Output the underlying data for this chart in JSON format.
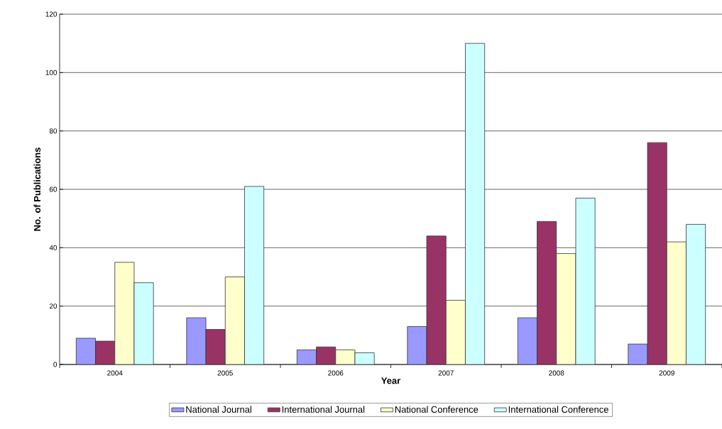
{
  "chart_data": {
    "type": "bar",
    "xlabel": "Year",
    "ylabel": "No. of Publications",
    "categories": [
      "2004",
      "2005",
      "2006",
      "2007",
      "2008",
      "2009"
    ],
    "series": [
      {
        "name": "National Journal",
        "color": "#9999ff",
        "values": [
          9,
          16,
          5,
          13,
          16,
          7
        ]
      },
      {
        "name": "International Journal",
        "color": "#993366",
        "values": [
          8,
          12,
          6,
          44,
          49,
          76
        ]
      },
      {
        "name": "National Conference",
        "color": "#ffffcc",
        "values": [
          35,
          30,
          5,
          22,
          38,
          42
        ]
      },
      {
        "name": "International Conference",
        "color": "#ccffff",
        "values": [
          28,
          61,
          4,
          110,
          57,
          48
        ]
      }
    ],
    "ylim": [
      0,
      120
    ],
    "yticks": [
      0,
      20,
      40,
      60,
      80,
      100,
      120
    ],
    "grid": "y",
    "legend": "bottom"
  }
}
